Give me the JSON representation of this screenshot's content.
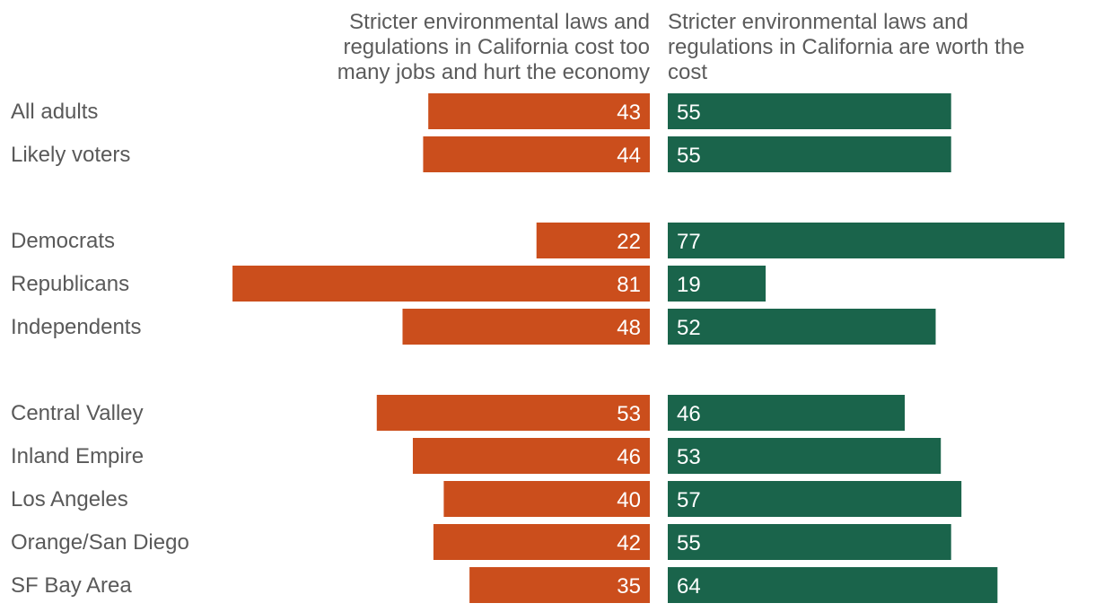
{
  "chart_data": {
    "type": "bar",
    "title": "",
    "xlabel": "",
    "ylabel": "",
    "xlim": [
      0,
      100
    ],
    "grid": false,
    "legend": "none",
    "series": [
      {
        "name": "Stricter environmental laws and regulations in California cost too many jobs and hurt the economy",
        "header_lines": [
          "Stricter environmental laws and",
          "regulations in California cost too",
          "many jobs and hurt the economy"
        ],
        "color": "#CB4E1C",
        "values": [
          43,
          44,
          22,
          81,
          48,
          53,
          46,
          40,
          42,
          35
        ]
      },
      {
        "name": "Stricter environmental laws and regulations in California are worth the cost",
        "header_lines": [
          "Stricter environmental laws and",
          "regulations in California are worth the",
          "cost"
        ],
        "color": "#1A644B",
        "values": [
          55,
          55,
          77,
          19,
          52,
          46,
          53,
          57,
          55,
          64
        ]
      }
    ],
    "categories": [
      "All adults",
      "Likely voters",
      "Democrats",
      "Republicans",
      "Independents",
      "Central Valley",
      "Inland Empire",
      "Los Angeles",
      "Orange/San Diego",
      "SF Bay Area"
    ],
    "groups": [
      [
        "All adults",
        "Likely voters"
      ],
      [
        "Democrats",
        "Republicans",
        "Independents"
      ],
      [
        "Central Valley",
        "Inland Empire",
        "Los Angeles",
        "Orange/San Diego",
        "SF Bay Area"
      ]
    ]
  }
}
